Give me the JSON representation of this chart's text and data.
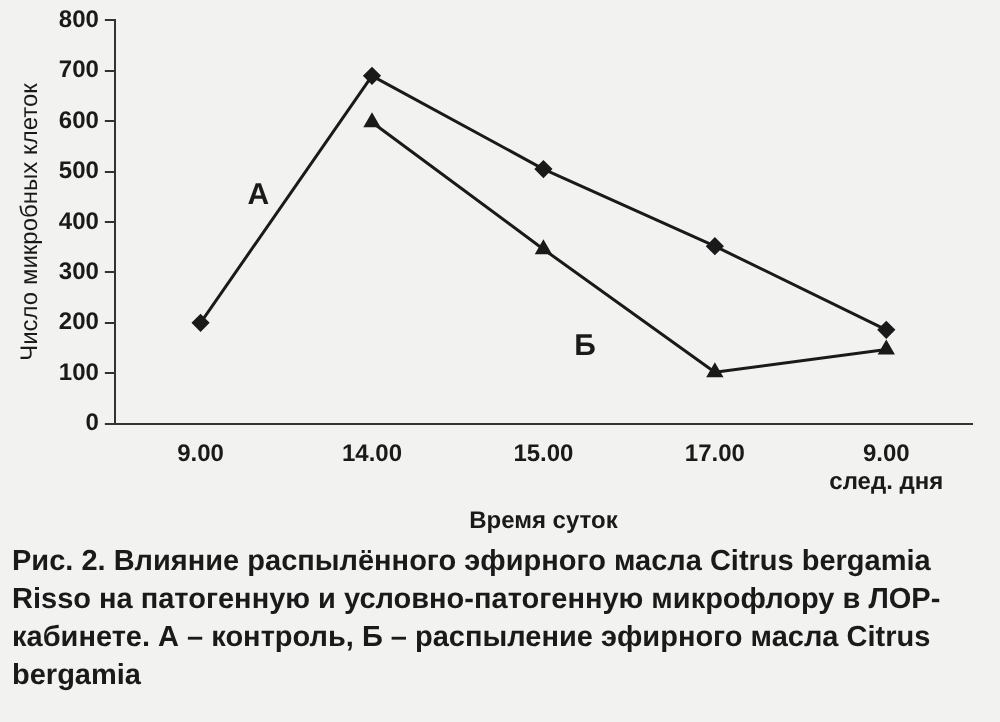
{
  "chart_data": {
    "type": "line",
    "xlabel": "Время суток",
    "ylabel": "Число микробных клеток",
    "categories": [
      "9.00",
      "14.00",
      "15.00",
      "17.00",
      "9.00\nслед. дня"
    ],
    "series": [
      {
        "name": "А",
        "color": "#1a1a1a",
        "marker": "diamond",
        "values": [
          200,
          690,
          505,
          352,
          186
        ]
      },
      {
        "name": "Б",
        "color": "#1a1a1a",
        "marker": "triangle",
        "values": [
          null,
          598,
          346,
          102,
          147
        ]
      }
    ],
    "ylim": [
      0,
      800
    ],
    "yticks": [
      0,
      100,
      200,
      300,
      400,
      500,
      600,
      700,
      800
    ],
    "grid": false,
    "legend": false,
    "line_style": "solid",
    "annotations": [
      "Рис. 2. Влияние распылённого эфирного масла Citrus bergamia Risso на патогенную и условно-патогенную микрофлору в ЛОР-кабинете. А – контроль, Б – распыление эфирного масла Citrus bergamia"
    ]
  }
}
